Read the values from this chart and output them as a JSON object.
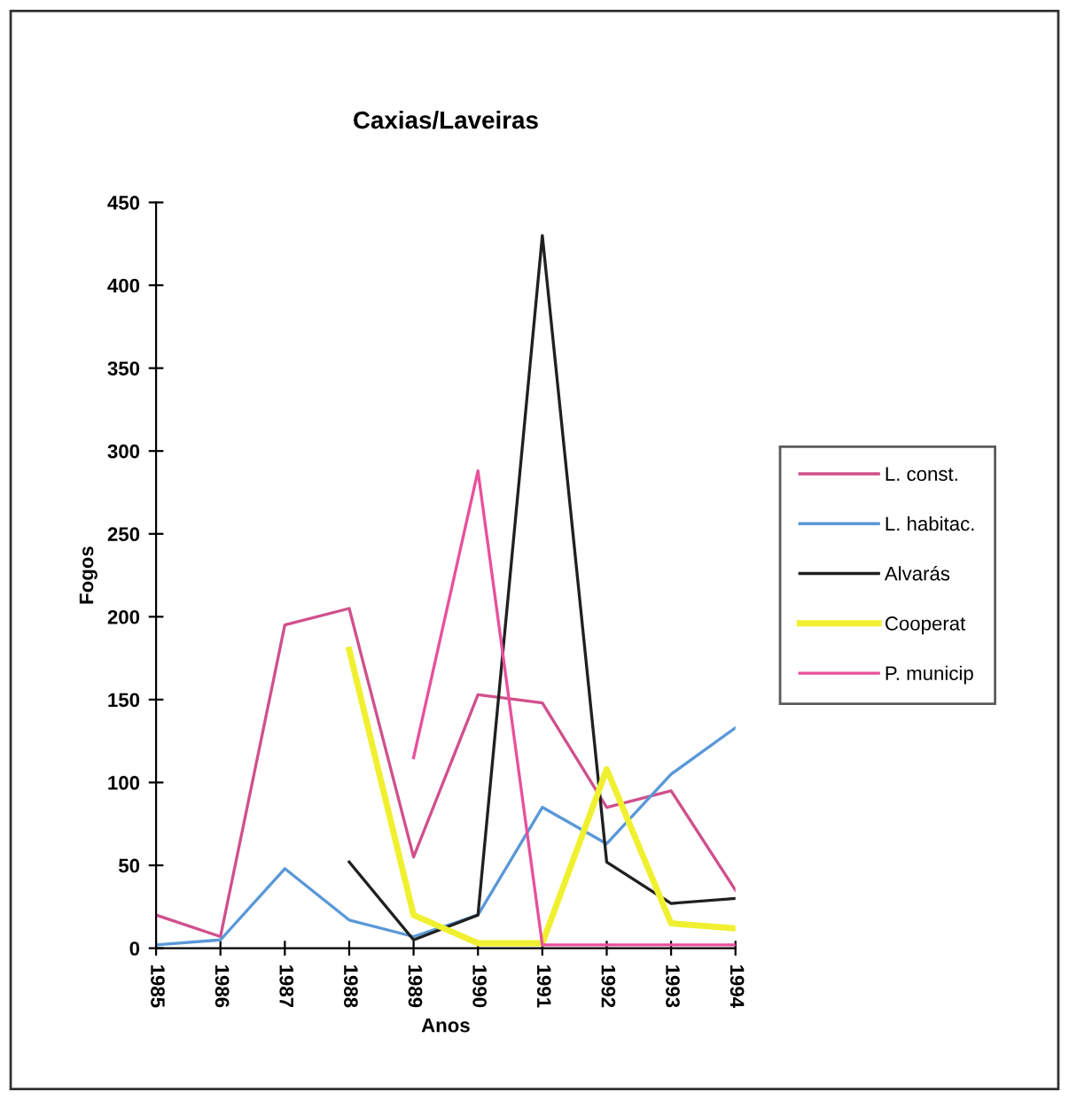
{
  "chart_data": {
    "type": "line",
    "title": "Caxias/Laveiras",
    "xlabel": "Anos",
    "ylabel": "Fogos",
    "categories": [
      "1985",
      "1986",
      "1987",
      "1988",
      "1989",
      "1990",
      "1991",
      "1992",
      "1993",
      "1994"
    ],
    "ylim": [
      0,
      450
    ],
    "yticks": [
      0,
      50,
      100,
      150,
      200,
      250,
      300,
      350,
      400,
      450
    ],
    "grid": false,
    "legend": "right",
    "marker": "none",
    "line_style": "solid",
    "series": [
      {
        "name": "L. const.",
        "color": "#d0508c",
        "values": [
          20,
          7,
          195,
          205,
          55,
          153,
          148,
          85,
          95,
          35
        ]
      },
      {
        "name": "L. habitac.",
        "color": "#5a98d8",
        "values": [
          2,
          5,
          48,
          17,
          7,
          20,
          85,
          63,
          105,
          133
        ]
      },
      {
        "name": "Alvarás",
        "color": "#202020",
        "values": [
          null,
          null,
          null,
          52,
          5,
          20,
          430,
          52,
          27,
          30
        ]
      },
      {
        "name": "Cooperat",
        "color": "#f0f030",
        "values": [
          null,
          null,
          null,
          180,
          20,
          3,
          3,
          108,
          15,
          12
        ]
      },
      {
        "name": "P. municip",
        "color": "#e8509c",
        "values": [
          null,
          null,
          null,
          null,
          115,
          288,
          2,
          2,
          2,
          2
        ]
      }
    ]
  }
}
